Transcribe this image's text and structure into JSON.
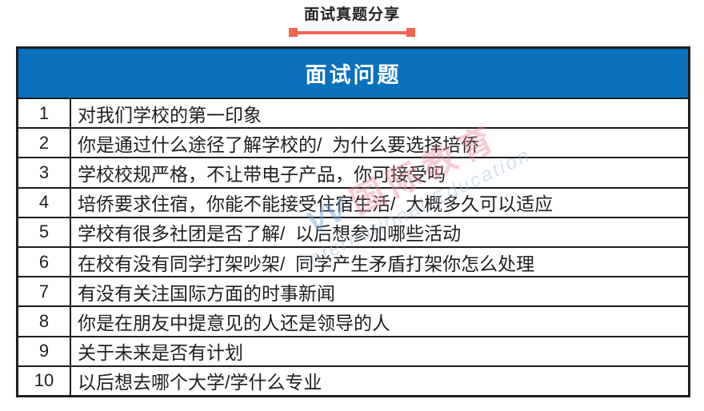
{
  "colors": {
    "header-blue": "#0971BE",
    "accent-coral": "#F0664F",
    "border-dark": "#1E1E1E",
    "text-dark": "#1F1F1F"
  },
  "page": {
    "title": "面试真题分享"
  },
  "table": {
    "header": "面试问题",
    "rows": [
      {
        "num": "1",
        "text": "对我们学校的第一印象"
      },
      {
        "num": "2",
        "text": "你是通过什么途径了解学校的/  为什么要选择培侨"
      },
      {
        "num": "3",
        "text": "学校校规严格，不让带电子产品，你可接受吗"
      },
      {
        "num": "4",
        "text": "培侨要求住宿，你能不能接受住宿生活/  大概多久可以适应"
      },
      {
        "num": "5",
        "text": "学校有很多社团是否了解/  以后想参加哪些活动"
      },
      {
        "num": "6",
        "text": "在校有没有同学打架吵架/  同学产生矛盾打架你怎么处理"
      },
      {
        "num": "7",
        "text": "有没有关注国际方面的时事新闻"
      },
      {
        "num": "8",
        "text": "你是在朋友中提意见的人还是领导的人"
      },
      {
        "num": "9",
        "text": "关于未来是否有计划"
      },
      {
        "num": "10",
        "text": "以后想去哪个大学/学什么专业"
      }
    ]
  },
  "watermark": {
    "logo": "VV",
    "text_cn": "国际教育",
    "text_en": "International Education"
  }
}
